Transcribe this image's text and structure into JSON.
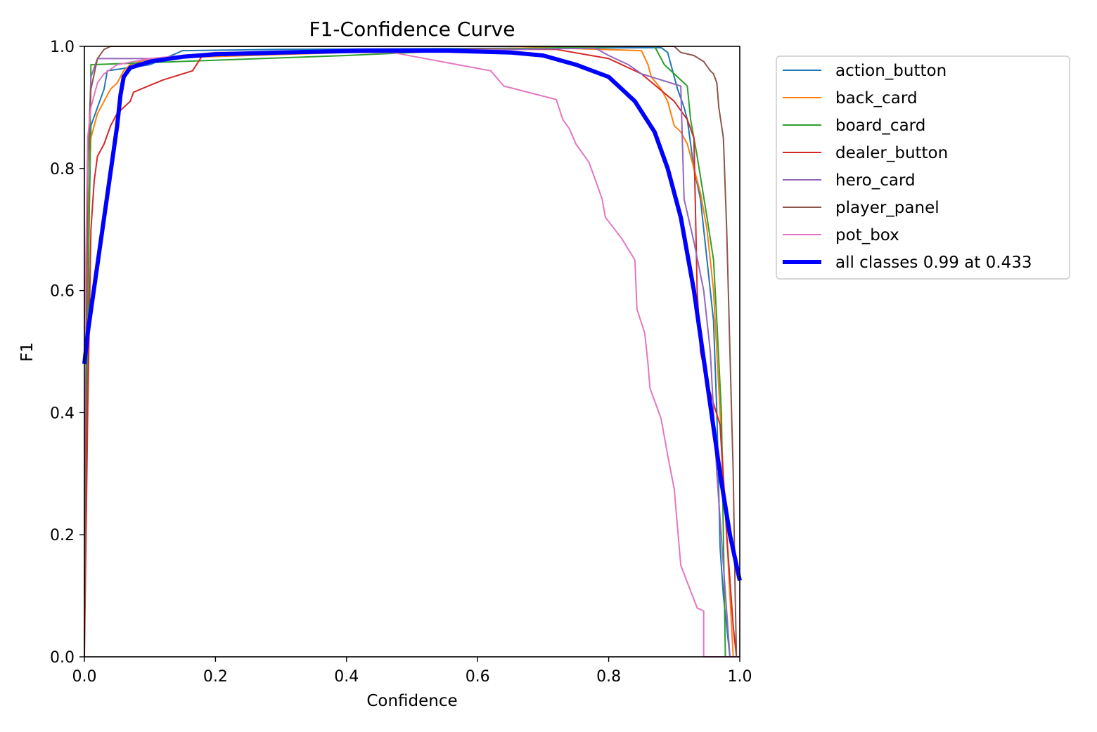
{
  "chart_data": {
    "type": "line",
    "title": "F1-Confidence Curve",
    "xlabel": "Confidence",
    "ylabel": "F1",
    "xlim": [
      0,
      1
    ],
    "ylim": [
      0,
      1
    ],
    "xticks": [
      "0.0",
      "0.2",
      "0.4",
      "0.6",
      "0.8",
      "1.0"
    ],
    "yticks": [
      "0.0",
      "0.2",
      "0.4",
      "0.6",
      "0.8",
      "1.0"
    ],
    "grid": false,
    "legend_position": "outside-top-right",
    "series": [
      {
        "name": "action_button",
        "color": "#1f77b4",
        "width": "thin",
        "points": [
          [
            0,
            0.1
          ],
          [
            0.005,
            0.6
          ],
          [
            0.01,
            0.87
          ],
          [
            0.02,
            0.9
          ],
          [
            0.03,
            0.93
          ],
          [
            0.035,
            0.96
          ],
          [
            0.1,
            0.97
          ],
          [
            0.15,
            0.993
          ],
          [
            0.3,
            0.995
          ],
          [
            0.88,
            0.998
          ],
          [
            0.89,
            0.99
          ],
          [
            0.9,
            0.95
          ],
          [
            0.905,
            0.93
          ],
          [
            0.915,
            0.9
          ],
          [
            0.92,
            0.88
          ],
          [
            0.93,
            0.8
          ],
          [
            0.94,
            0.75
          ],
          [
            0.95,
            0.65
          ],
          [
            0.96,
            0.55
          ],
          [
            0.965,
            0.4
          ],
          [
            0.97,
            0.18
          ],
          [
            0.975,
            0.1
          ],
          [
            0.985,
            0
          ]
        ]
      },
      {
        "name": "back_card",
        "color": "#ff7f0e",
        "width": "thin",
        "points": [
          [
            0,
            0.1
          ],
          [
            0.005,
            0.7
          ],
          [
            0.01,
            0.85
          ],
          [
            0.02,
            0.89
          ],
          [
            0.03,
            0.91
          ],
          [
            0.04,
            0.93
          ],
          [
            0.05,
            0.94
          ],
          [
            0.06,
            0.96
          ],
          [
            0.07,
            0.97
          ],
          [
            0.1,
            0.98
          ],
          [
            0.4,
            0.99
          ],
          [
            0.7,
            0.998
          ],
          [
            0.85,
            0.993
          ],
          [
            0.86,
            0.97
          ],
          [
            0.865,
            0.95
          ],
          [
            0.88,
            0.93
          ],
          [
            0.89,
            0.91
          ],
          [
            0.9,
            0.87
          ],
          [
            0.91,
            0.86
          ],
          [
            0.92,
            0.84
          ],
          [
            0.93,
            0.8
          ],
          [
            0.94,
            0.76
          ],
          [
            0.95,
            0.7
          ],
          [
            0.96,
            0.6
          ],
          [
            0.97,
            0.4
          ],
          [
            0.98,
            0.2
          ],
          [
            0.99,
            0
          ]
        ]
      },
      {
        "name": "board_card",
        "color": "#2ca02c",
        "width": "thin",
        "points": [
          [
            0,
            0.02
          ],
          [
            0.005,
            0.5
          ],
          [
            0.01,
            0.97
          ],
          [
            0.4,
            0.985
          ],
          [
            0.5,
            0.99
          ],
          [
            0.6,
            0.995
          ],
          [
            0.82,
            1.0
          ],
          [
            0.87,
            1.0
          ],
          [
            0.885,
            0.97
          ],
          [
            0.9,
            0.955
          ],
          [
            0.92,
            0.935
          ],
          [
            0.925,
            0.88
          ],
          [
            0.935,
            0.82
          ],
          [
            0.95,
            0.72
          ],
          [
            0.96,
            0.65
          ],
          [
            0.965,
            0.55
          ],
          [
            0.972,
            0.4
          ],
          [
            0.975,
            0.2
          ],
          [
            0.978,
            0
          ]
        ]
      },
      {
        "name": "dealer_button",
        "color": "#d62728",
        "width": "thin",
        "points": [
          [
            0,
            0
          ],
          [
            0.005,
            0.4
          ],
          [
            0.01,
            0.7
          ],
          [
            0.015,
            0.78
          ],
          [
            0.02,
            0.82
          ],
          [
            0.03,
            0.84
          ],
          [
            0.04,
            0.87
          ],
          [
            0.05,
            0.89
          ],
          [
            0.07,
            0.91
          ],
          [
            0.075,
            0.925
          ],
          [
            0.12,
            0.945
          ],
          [
            0.165,
            0.96
          ],
          [
            0.18,
            0.985
          ],
          [
            0.3,
            0.99
          ],
          [
            0.6,
            0.995
          ],
          [
            0.72,
            0.995
          ],
          [
            0.8,
            0.98
          ],
          [
            0.85,
            0.955
          ],
          [
            0.9,
            0.91
          ],
          [
            0.92,
            0.88
          ],
          [
            0.93,
            0.85
          ],
          [
            0.935,
            0.6
          ],
          [
            0.94,
            0.5
          ],
          [
            0.95,
            0.45
          ],
          [
            0.97,
            0.38
          ],
          [
            0.98,
            0.2
          ],
          [
            0.99,
            0.05
          ],
          [
            0.995,
            0
          ]
        ]
      },
      {
        "name": "hero_card",
        "color": "#9467bd",
        "width": "thin",
        "points": [
          [
            0,
            0.2
          ],
          [
            0.005,
            0.8
          ],
          [
            0.01,
            0.95
          ],
          [
            0.02,
            0.98
          ],
          [
            0.1,
            0.98
          ],
          [
            0.3,
            0.99
          ],
          [
            0.78,
            0.997
          ],
          [
            0.8,
            0.985
          ],
          [
            0.83,
            0.97
          ],
          [
            0.85,
            0.955
          ],
          [
            0.91,
            0.935
          ],
          [
            0.915,
            0.75
          ],
          [
            0.93,
            0.68
          ],
          [
            0.945,
            0.6
          ],
          [
            0.955,
            0.5
          ],
          [
            0.965,
            0.3
          ],
          [
            0.975,
            0.15
          ],
          [
            0.985,
            0
          ]
        ]
      },
      {
        "name": "player_panel",
        "color": "#8c564b",
        "width": "thin",
        "points": [
          [
            0,
            0.02
          ],
          [
            0.005,
            0.8
          ],
          [
            0.01,
            0.93
          ],
          [
            0.02,
            0.98
          ],
          [
            0.03,
            0.995
          ],
          [
            0.04,
            1.0
          ],
          [
            0.9,
            1.0
          ],
          [
            0.91,
            0.99
          ],
          [
            0.93,
            0.985
          ],
          [
            0.945,
            0.975
          ],
          [
            0.955,
            0.96
          ],
          [
            0.96,
            0.955
          ],
          [
            0.965,
            0.94
          ],
          [
            0.968,
            0.9
          ],
          [
            0.975,
            0.85
          ],
          [
            0.98,
            0.7
          ],
          [
            0.985,
            0.5
          ],
          [
            0.99,
            0.3
          ],
          [
            0.993,
            0.1
          ],
          [
            0.995,
            0
          ]
        ]
      },
      {
        "name": "pot_box",
        "color": "#e377c2",
        "width": "thin",
        "points": [
          [
            0,
            0.5
          ],
          [
            0.005,
            0.85
          ],
          [
            0.01,
            0.9
          ],
          [
            0.02,
            0.94
          ],
          [
            0.03,
            0.955
          ],
          [
            0.05,
            0.97
          ],
          [
            0.1,
            0.98
          ],
          [
            0.2,
            0.99
          ],
          [
            0.47,
            0.99
          ],
          [
            0.62,
            0.96
          ],
          [
            0.64,
            0.935
          ],
          [
            0.72,
            0.913
          ],
          [
            0.73,
            0.88
          ],
          [
            0.74,
            0.865
          ],
          [
            0.75,
            0.84
          ],
          [
            0.77,
            0.81
          ],
          [
            0.78,
            0.78
          ],
          [
            0.79,
            0.75
          ],
          [
            0.795,
            0.72
          ],
          [
            0.82,
            0.685
          ],
          [
            0.84,
            0.65
          ],
          [
            0.842,
            0.6
          ],
          [
            0.843,
            0.57
          ],
          [
            0.855,
            0.53
          ],
          [
            0.86,
            0.48
          ],
          [
            0.863,
            0.44
          ],
          [
            0.88,
            0.39
          ],
          [
            0.89,
            0.33
          ],
          [
            0.9,
            0.275
          ],
          [
            0.91,
            0.15
          ],
          [
            0.935,
            0.08
          ],
          [
            0.945,
            0.075
          ],
          [
            0.945,
            0
          ],
          [
            1,
            0
          ]
        ]
      },
      {
        "name": "all classes 0.99 at 0.433",
        "color": "#0000ff",
        "width": "thick",
        "points": [
          [
            0,
            0.48
          ],
          [
            0.005,
            0.53
          ],
          [
            0.05,
            0.87
          ],
          [
            0.055,
            0.92
          ],
          [
            0.06,
            0.95
          ],
          [
            0.07,
            0.965
          ],
          [
            0.1,
            0.975
          ],
          [
            0.15,
            0.983
          ],
          [
            0.2,
            0.987
          ],
          [
            0.3,
            0.99
          ],
          [
            0.433,
            0.993
          ],
          [
            0.55,
            0.993
          ],
          [
            0.65,
            0.99
          ],
          [
            0.7,
            0.985
          ],
          [
            0.75,
            0.97
          ],
          [
            0.8,
            0.95
          ],
          [
            0.84,
            0.91
          ],
          [
            0.87,
            0.86
          ],
          [
            0.89,
            0.8
          ],
          [
            0.91,
            0.72
          ],
          [
            0.93,
            0.6
          ],
          [
            0.95,
            0.45
          ],
          [
            0.97,
            0.3
          ],
          [
            0.985,
            0.2
          ],
          [
            1.0,
            0.125
          ]
        ]
      }
    ]
  }
}
